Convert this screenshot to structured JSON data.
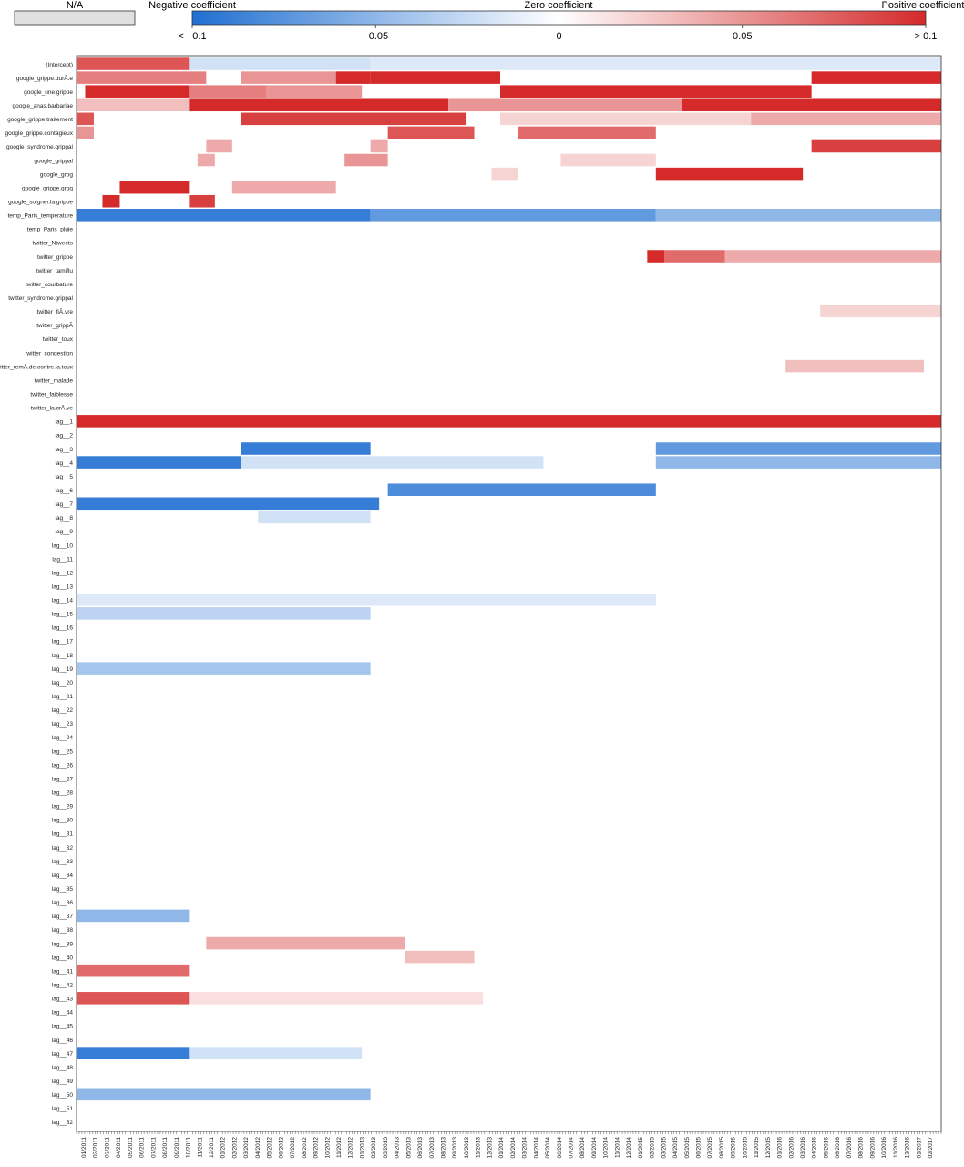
{
  "legend": {
    "na_label": "N/A",
    "negative_label": "Negative coefficient",
    "zero_label": "Zero coefficient",
    "positive_label": "Positive coefficient",
    "ticks": [
      "< −0.1",
      "−0.05",
      "0",
      "0.05",
      "> 0.1"
    ],
    "tick_values": [
      -0.1,
      -0.05,
      0,
      0.05,
      0.1
    ],
    "colors": {
      "negative": "#1f6fd1",
      "zero": "#ffffff",
      "positive": "#d42a2a",
      "na": "#e0e0e0"
    }
  },
  "chart_data": {
    "type": "heatmap",
    "color_range": [
      -0.1,
      0.1
    ],
    "rows": [
      "(Intercept)",
      "google_grippe.durÃ.e",
      "google_une.grippe",
      "google_anas.barbariae",
      "google_grippe.traitement",
      "google_grippe.contagieux",
      "google_syndrome.grippal",
      "google_grippal",
      "google_grog",
      "google_grippe.grog",
      "google_soigner.la.grippe",
      "temp_Paris_temperature",
      "temp_Paris_pluie",
      "twitter_Ntweets",
      "twitter_grippe",
      "twitter_tamiflu",
      "twitter_courbature",
      "twitter_syndrome.grippal",
      "twitter_fiÃ.vre",
      "twitter_grippÃ",
      "twitter_toux",
      "twitter_congestion",
      "twitter_remÃ.de.contre.la.toux",
      "twitter_malade",
      "twitter_faiblesse",
      "twitter_la.crÃ.ve",
      "lag__1",
      "lag__2",
      "lag__3",
      "lag__4",
      "lag__5",
      "lag__6",
      "lag__7",
      "lag__8",
      "lag__9",
      "lag__10",
      "lag__11",
      "lag__12",
      "lag__13",
      "lag__14",
      "lag__15",
      "lag__16",
      "lag__17",
      "lag__18",
      "lag__19",
      "lag__20",
      "lag__21",
      "lag__22",
      "lag__23",
      "lag__24",
      "lag__25",
      "lag__26",
      "lag__27",
      "lag__28",
      "lag__29",
      "lag__30",
      "lag__31",
      "lag__32",
      "lag__33",
      "lag__34",
      "lag__35",
      "lag__36",
      "lag__37",
      "lag__38",
      "lag__39",
      "lag__40",
      "lag__41",
      "lag__42",
      "lag__43",
      "lag__44",
      "lag__45",
      "lag__46",
      "lag__47",
      "lag__48",
      "lag__49",
      "lag__50",
      "lag__51",
      "lag__52"
    ],
    "x_tick_labels": [
      "01/2011",
      "02/2011",
      "03/2011",
      "04/2011",
      "05/2011",
      "06/2011",
      "07/2011",
      "08/2011",
      "09/2011",
      "10/2011",
      "11/2011",
      "12/2011",
      "01/2012",
      "02/2012",
      "03/2012",
      "04/2012",
      "05/2012",
      "06/2012",
      "07/2012",
      "08/2012",
      "09/2012",
      "10/2012",
      "11/2012",
      "12/2012",
      "01/2013",
      "02/2013",
      "03/2013",
      "04/2013",
      "05/2013",
      "06/2013",
      "07/2013",
      "08/2013",
      "09/2013",
      "10/2013",
      "11/2013",
      "12/2013",
      "01/2014",
      "02/2014",
      "03/2014",
      "04/2014",
      "05/2014",
      "06/2014",
      "07/2014",
      "08/2014",
      "09/2014",
      "10/2014",
      "11/2014",
      "12/2014",
      "01/2015",
      "02/2015",
      "03/2015",
      "04/2015",
      "05/2015",
      "06/2015",
      "07/2015",
      "08/2015",
      "09/2015",
      "10/2015",
      "11/2015",
      "12/2015",
      "01/2016",
      "02/2016",
      "03/2016",
      "04/2016",
      "05/2016",
      "06/2016",
      "07/2016",
      "08/2016",
      "09/2016",
      "10/2016",
      "11/2016",
      "12/2016",
      "01/2017",
      "02/2017"
    ],
    "columns": 320,
    "segments": [
      {
        "row": 0,
        "from": 0.0,
        "to": 0.13,
        "value": 0.08
      },
      {
        "row": 0,
        "from": 0.13,
        "to": 0.34,
        "value": -0.02
      },
      {
        "row": 0,
        "from": 0.34,
        "to": 1.0,
        "value": -0.015
      },
      {
        "row": 1,
        "from": 0.0,
        "to": 0.15,
        "value": 0.06
      },
      {
        "row": 1,
        "from": 0.19,
        "to": 0.3,
        "value": 0.05
      },
      {
        "row": 1,
        "from": 0.3,
        "to": 0.34,
        "value": 0.1
      },
      {
        "row": 1,
        "from": 0.34,
        "to": 0.49,
        "value": 0.1
      },
      {
        "row": 1,
        "from": 0.85,
        "to": 1.0,
        "value": 0.1
      },
      {
        "row": 2,
        "from": 0.01,
        "to": 0.13,
        "value": 0.1
      },
      {
        "row": 2,
        "from": 0.13,
        "to": 0.22,
        "value": 0.06
      },
      {
        "row": 2,
        "from": 0.22,
        "to": 0.33,
        "value": 0.05
      },
      {
        "row": 2,
        "from": 0.49,
        "to": 0.85,
        "value": 0.1
      },
      {
        "row": 3,
        "from": 0.0,
        "to": 0.13,
        "value": 0.03
      },
      {
        "row": 3,
        "from": 0.13,
        "to": 0.43,
        "value": 0.1
      },
      {
        "row": 3,
        "from": 0.43,
        "to": 0.7,
        "value": 0.05
      },
      {
        "row": 3,
        "from": 0.7,
        "to": 1.0,
        "value": 0.1
      },
      {
        "row": 4,
        "from": 0.0,
        "to": 0.02,
        "value": 0.08
      },
      {
        "row": 4,
        "from": 0.19,
        "to": 0.45,
        "value": 0.09
      },
      {
        "row": 4,
        "from": 0.49,
        "to": 0.78,
        "value": 0.02
      },
      {
        "row": 4,
        "from": 0.78,
        "to": 1.0,
        "value": 0.04
      },
      {
        "row": 5,
        "from": 0.0,
        "to": 0.02,
        "value": 0.05
      },
      {
        "row": 5,
        "from": 0.36,
        "to": 0.46,
        "value": 0.08
      },
      {
        "row": 5,
        "from": 0.51,
        "to": 0.67,
        "value": 0.07
      },
      {
        "row": 6,
        "from": 0.15,
        "to": 0.18,
        "value": 0.04
      },
      {
        "row": 6,
        "from": 0.34,
        "to": 0.36,
        "value": 0.04
      },
      {
        "row": 6,
        "from": 0.85,
        "to": 1.0,
        "value": 0.09
      },
      {
        "row": 7,
        "from": 0.14,
        "to": 0.16,
        "value": 0.04
      },
      {
        "row": 7,
        "from": 0.31,
        "to": 0.36,
        "value": 0.05
      },
      {
        "row": 7,
        "from": 0.56,
        "to": 0.67,
        "value": 0.02
      },
      {
        "row": 8,
        "from": 0.48,
        "to": 0.51,
        "value": 0.02
      },
      {
        "row": 8,
        "from": 0.67,
        "to": 0.84,
        "value": 0.1
      },
      {
        "row": 9,
        "from": 0.05,
        "to": 0.13,
        "value": 0.1
      },
      {
        "row": 9,
        "from": 0.18,
        "to": 0.3,
        "value": 0.04
      },
      {
        "row": 10,
        "from": 0.03,
        "to": 0.05,
        "value": 0.1
      },
      {
        "row": 10,
        "from": 0.13,
        "to": 0.16,
        "value": 0.09
      },
      {
        "row": 11,
        "from": 0.0,
        "to": 0.34,
        "value": -0.09
      },
      {
        "row": 11,
        "from": 0.34,
        "to": 0.67,
        "value": -0.07
      },
      {
        "row": 11,
        "from": 0.67,
        "to": 1.0,
        "value": -0.05
      },
      {
        "row": 14,
        "from": 0.66,
        "to": 0.68,
        "value": 0.1
      },
      {
        "row": 14,
        "from": 0.68,
        "to": 0.75,
        "value": 0.07
      },
      {
        "row": 14,
        "from": 0.75,
        "to": 1.0,
        "value": 0.04
      },
      {
        "row": 18,
        "from": 0.86,
        "to": 1.0,
        "value": 0.02
      },
      {
        "row": 22,
        "from": 0.82,
        "to": 0.98,
        "value": 0.03
      },
      {
        "row": 26,
        "from": 0.0,
        "to": 1.0,
        "value": 0.1
      },
      {
        "row": 28,
        "from": 0.19,
        "to": 0.34,
        "value": -0.09
      },
      {
        "row": 28,
        "from": 0.67,
        "to": 1.0,
        "value": -0.07
      },
      {
        "row": 29,
        "from": 0.0,
        "to": 0.19,
        "value": -0.09
      },
      {
        "row": 29,
        "from": 0.19,
        "to": 0.54,
        "value": -0.02
      },
      {
        "row": 29,
        "from": 0.67,
        "to": 1.0,
        "value": -0.05
      },
      {
        "row": 31,
        "from": 0.36,
        "to": 0.67,
        "value": -0.08
      },
      {
        "row": 32,
        "from": 0.0,
        "to": 0.35,
        "value": -0.09
      },
      {
        "row": 33,
        "from": 0.21,
        "to": 0.34,
        "value": -0.02
      },
      {
        "row": 39,
        "from": 0.0,
        "to": 0.67,
        "value": -0.015
      },
      {
        "row": 40,
        "from": 0.0,
        "to": 0.34,
        "value": -0.03
      },
      {
        "row": 44,
        "from": 0.0,
        "to": 0.34,
        "value": -0.04
      },
      {
        "row": 62,
        "from": 0.0,
        "to": 0.13,
        "value": -0.05
      },
      {
        "row": 64,
        "from": 0.15,
        "to": 0.38,
        "value": 0.04
      },
      {
        "row": 65,
        "from": 0.38,
        "to": 0.46,
        "value": 0.03
      },
      {
        "row": 66,
        "from": 0.0,
        "to": 0.13,
        "value": 0.07
      },
      {
        "row": 68,
        "from": 0.0,
        "to": 0.13,
        "value": 0.08
      },
      {
        "row": 68,
        "from": 0.13,
        "to": 0.47,
        "value": 0.015
      },
      {
        "row": 72,
        "from": 0.0,
        "to": 0.13,
        "value": -0.09
      },
      {
        "row": 72,
        "from": 0.13,
        "to": 0.33,
        "value": -0.02
      },
      {
        "row": 75,
        "from": 0.0,
        "to": 0.34,
        "value": -0.05
      }
    ]
  }
}
